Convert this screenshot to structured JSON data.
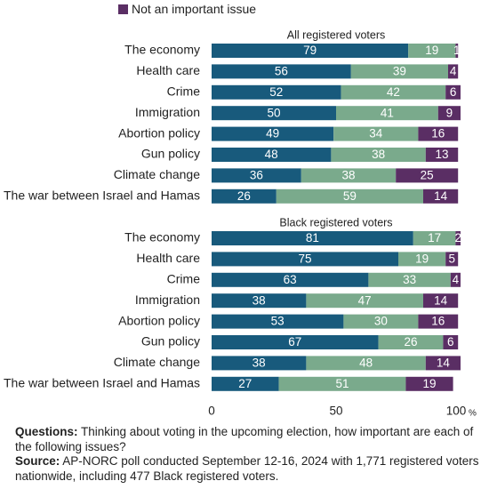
{
  "legend": {
    "label": "Not an important issue",
    "color": "#5a2e64"
  },
  "notes": {
    "questions_label": "Questions:",
    "questions_text": " Thinking about voting in the upcoming election, how important are each of the following issues?",
    "source_label": "Source:",
    "source_text": " AP-NORC poll conducted September 12-16, 2024 with 1,771 registered voters nationwide, including 477 Black registered voters."
  },
  "chart_data": {
    "type": "bar",
    "orientation": "horizontal",
    "stacked": true,
    "xlim": [
      0,
      100
    ],
    "x_ticks": [
      {
        "value": 0,
        "label": "0"
      },
      {
        "value": 50,
        "label": "50"
      },
      {
        "value": 100,
        "label": "100"
      }
    ],
    "x_unit": "%",
    "colors": [
      "#185a7c",
      "#7aaa8c",
      "#5a2e64"
    ],
    "panels": [
      {
        "title": "All registered voters",
        "categories": [
          "The economy",
          "Health care",
          "Crime",
          "Immigration",
          "Abortion policy",
          "Gun policy",
          "Climate change",
          "The war between Israel and Hamas"
        ],
        "series": [
          {
            "values": [
              79,
              56,
              52,
              50,
              49,
              48,
              36,
              26
            ]
          },
          {
            "values": [
              19,
              39,
              42,
              41,
              34,
              38,
              38,
              59
            ]
          },
          {
            "name": "Not an important issue",
            "values": [
              1,
              4,
              6,
              9,
              16,
              13,
              25,
              14
            ]
          }
        ]
      },
      {
        "title": "Black registered voters",
        "categories": [
          "The economy",
          "Health care",
          "Crime",
          "Immigration",
          "Abortion policy",
          "Gun policy",
          "Climate change",
          "The war between Israel and Hamas"
        ],
        "series": [
          {
            "values": [
              81,
              75,
              63,
              38,
              53,
              67,
              38,
              27
            ]
          },
          {
            "values": [
              17,
              19,
              33,
              47,
              30,
              26,
              48,
              51
            ]
          },
          {
            "name": "Not an important issue",
            "values": [
              2,
              5,
              4,
              14,
              16,
              6,
              14,
              19
            ]
          }
        ]
      }
    ]
  }
}
